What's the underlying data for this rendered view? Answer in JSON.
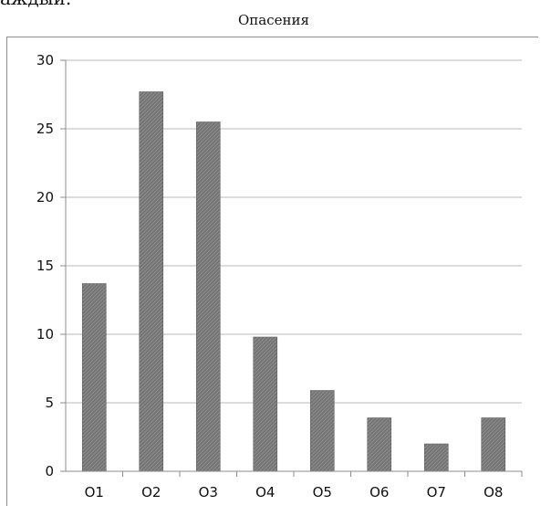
{
  "page_fragment": "аждый.",
  "chart_data": {
    "type": "bar",
    "title": "Опасения",
    "xlabel": "",
    "ylabel": "",
    "categories": [
      "O1",
      "O2",
      "O3",
      "O4",
      "O5",
      "O6",
      "O7",
      "O8"
    ],
    "values": [
      13.7,
      27.7,
      25.5,
      9.8,
      5.9,
      3.9,
      2.0,
      3.9
    ],
    "ylim": [
      0,
      30
    ],
    "yticks": [
      0,
      5,
      10,
      15,
      20,
      25,
      30
    ],
    "grid": true,
    "legend": "none",
    "bar_color": "#6f6f6f",
    "grid_color": "#b8b8b8",
    "axis_color": "#8c8c8c"
  }
}
